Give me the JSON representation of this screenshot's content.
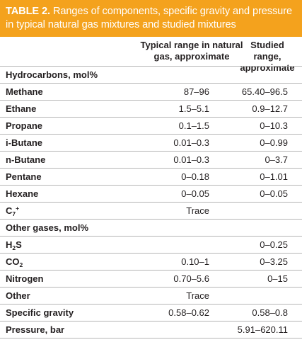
{
  "table": {
    "title_label": "TABLE 2.",
    "title_text": " Ranges of components, specific gravity and pressure in typical natural gas mixtures and studied mixtures",
    "col1_header": "Typical range in natural gas, approximate",
    "col2_header": "Studied range, approximate",
    "sections": {
      "hydrocarbons": "Hydrocarbons, mol%",
      "other_gases": "Other gases, mol%"
    },
    "rows": {
      "methane": {
        "label": "Methane",
        "typical": "87–96",
        "studied": "65.40–96.5"
      },
      "ethane": {
        "label": "Ethane",
        "typical": "1.5–5.1",
        "studied": "0.9–12.7"
      },
      "propane": {
        "label": "Propane",
        "typical": "0.1–1.5",
        "studied": "0–10.3"
      },
      "ibutane": {
        "label": "i-Butane",
        "typical": "0.01–0.3",
        "studied": "0–0.99"
      },
      "nbutane": {
        "label": "n-Butane",
        "typical": "0.01–0.3",
        "studied": "0–3.7"
      },
      "pentane": {
        "label": "Pentane",
        "typical": "0–0.18",
        "studied": "0–1.01"
      },
      "hexane": {
        "label": "Hexane",
        "typical": "0–0.05",
        "studied": "0–0.05"
      },
      "c7plus": {
        "label_main": "C",
        "label_sub": "7",
        "label_sup": "+",
        "typical": "Trace",
        "studied": ""
      },
      "h2s": {
        "label_main": "H",
        "label_sub": "2",
        "label_tail": "S",
        "typical": "",
        "studied": "0–0.25"
      },
      "co2": {
        "label_main": "CO",
        "label_sub": "2",
        "typical": "0.10–1",
        "studied": "0–3.25"
      },
      "nitrogen": {
        "label": "Nitrogen",
        "typical": "0.70–5.6",
        "studied": "0–15"
      },
      "other": {
        "label": "Other",
        "typical": "Trace",
        "studied": ""
      },
      "sg": {
        "label": "Specific gravity",
        "typical": "0.58–0.62",
        "studied": "0.58–0.8"
      },
      "pressure": {
        "label": "Pressure, bar",
        "typical": "",
        "studied": "5.91–620.11"
      }
    }
  },
  "colors": {
    "title_band": "#f4a21d",
    "title_text": "#ffffff",
    "body_text": "#231f20",
    "rule": "#b5b5b5"
  }
}
